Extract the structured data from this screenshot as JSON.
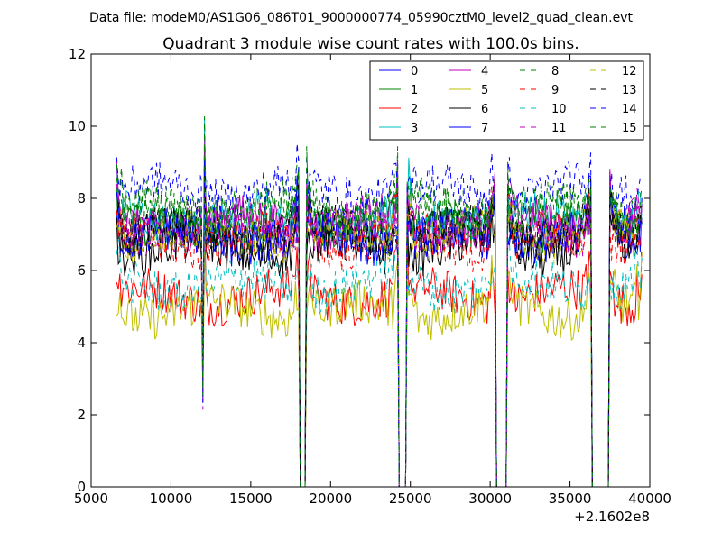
{
  "header": {
    "data_file": "Data file: modeM0/AS1G06_086T01_9000000774_05990cztM0_level2_quad_clean.evt"
  },
  "chart_data": {
    "type": "line",
    "title": "Quadrant 3 module wise count rates with 100.0s bins.",
    "xlabel": "",
    "ylabel": "",
    "x_offset_label": "+2.1602e8",
    "xlim": [
      5000,
      40000
    ],
    "ylim": [
      0,
      12
    ],
    "x_ticks": [
      5000,
      10000,
      15000,
      20000,
      25000,
      30000,
      35000,
      40000
    ],
    "x_tick_labels": [
      "5000",
      "10000",
      "15000",
      "20000",
      "25000",
      "30000",
      "35000",
      "40000"
    ],
    "y_ticks": [
      0,
      2,
      4,
      6,
      8,
      10,
      12
    ],
    "y_tick_labels": [
      "0",
      "2",
      "4",
      "6",
      "8",
      "10",
      "12"
    ],
    "x_start": 6600,
    "x_end": 39500,
    "bin_size": 100,
    "gaps": [
      {
        "start": 18100,
        "end": 18400
      },
      {
        "start": 24300,
        "end": 24700
      },
      {
        "start": 30400,
        "end": 31000
      },
      {
        "start": 36400,
        "end": 37400
      }
    ],
    "segments": [
      {
        "start": 6600,
        "end": 18000
      },
      {
        "start": 18500,
        "end": 24200
      },
      {
        "start": 24800,
        "end": 30300
      },
      {
        "start": 31100,
        "end": 36300
      },
      {
        "start": 37500,
        "end": 39500
      }
    ],
    "spikes": [
      {
        "x": 12000,
        "kind": "dip",
        "low": 2.0
      },
      {
        "x": 12100,
        "kind": "peak",
        "amount": 2.8
      }
    ],
    "legend_position": "upper right",
    "series": [
      {
        "name": "0",
        "style": "solid",
        "color": "#0000ff",
        "base": 7.0
      },
      {
        "name": "1",
        "style": "solid",
        "color": "#008000",
        "base": 7.1
      },
      {
        "name": "2",
        "style": "solid",
        "color": "#ff0000",
        "base": 5.3
      },
      {
        "name": "3",
        "style": "solid",
        "color": "#00bfbf",
        "base": 7.4
      },
      {
        "name": "4",
        "style": "solid",
        "color": "#bf00bf",
        "base": 7.3
      },
      {
        "name": "5",
        "style": "solid",
        "color": "#bfbf00",
        "base": 4.9
      },
      {
        "name": "6",
        "style": "solid",
        "color": "#000000",
        "base": 6.6
      },
      {
        "name": "7",
        "style": "solid",
        "color": "#0000ff",
        "base": 6.9
      },
      {
        "name": "8",
        "style": "dashed",
        "color": "#008000",
        "base": 7.6
      },
      {
        "name": "9",
        "style": "dashed",
        "color": "#ff0000",
        "base": 6.8
      },
      {
        "name": "10",
        "style": "dashed",
        "color": "#00bfbf",
        "base": 5.6
      },
      {
        "name": "11",
        "style": "dashed",
        "color": "#bf00bf",
        "base": 7.2
      },
      {
        "name": "12",
        "style": "dashed",
        "color": "#bfbf00",
        "base": 7.0
      },
      {
        "name": "13",
        "style": "dashed",
        "color": "#000000",
        "base": 7.1
      },
      {
        "name": "14",
        "style": "dashed",
        "color": "#0000ff",
        "base": 8.2
      },
      {
        "name": "15",
        "style": "dashed",
        "color": "#008000",
        "base": 7.7
      }
    ]
  }
}
